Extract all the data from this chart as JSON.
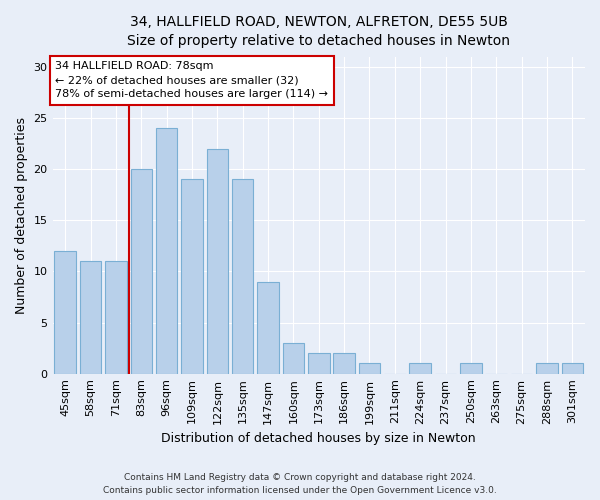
{
  "title_line1": "34, HALLFIELD ROAD, NEWTON, ALFRETON, DE55 5UB",
  "title_line2": "Size of property relative to detached houses in Newton",
  "xlabel": "Distribution of detached houses by size in Newton",
  "ylabel": "Number of detached properties",
  "categories": [
    "45sqm",
    "58sqm",
    "71sqm",
    "83sqm",
    "96sqm",
    "109sqm",
    "122sqm",
    "135sqm",
    "147sqm",
    "160sqm",
    "173sqm",
    "186sqm",
    "199sqm",
    "211sqm",
    "224sqm",
    "237sqm",
    "250sqm",
    "263sqm",
    "275sqm",
    "288sqm",
    "301sqm"
  ],
  "values": [
    12,
    11,
    11,
    20,
    24,
    19,
    22,
    19,
    9,
    3,
    2,
    2,
    1,
    0,
    1,
    0,
    1,
    0,
    0,
    1,
    1
  ],
  "bar_color": "#b8d0ea",
  "bar_edge_color": "#7aafd4",
  "vline_x_index": 3,
  "annotation_title": "34 HALLFIELD ROAD: 78sqm",
  "annotation_line2": "← 22% of detached houses are smaller (32)",
  "annotation_line3": "78% of semi-detached houses are larger (114) →",
  "annotation_box_color": "#ffffff",
  "annotation_box_edge": "#cc0000",
  "vline_color": "#cc0000",
  "ylim": [
    0,
    31
  ],
  "yticks": [
    0,
    5,
    10,
    15,
    20,
    25,
    30
  ],
  "footer_line1": "Contains HM Land Registry data © Crown copyright and database right 2024.",
  "footer_line2": "Contains public sector information licensed under the Open Government Licence v3.0.",
  "bg_color": "#e8eef8",
  "plot_bg_color": "#e8eef8",
  "title_fontsize": 10,
  "subtitle_fontsize": 9,
  "ylabel_fontsize": 9,
  "xlabel_fontsize": 9,
  "tick_fontsize": 8,
  "footer_fontsize": 6.5
}
